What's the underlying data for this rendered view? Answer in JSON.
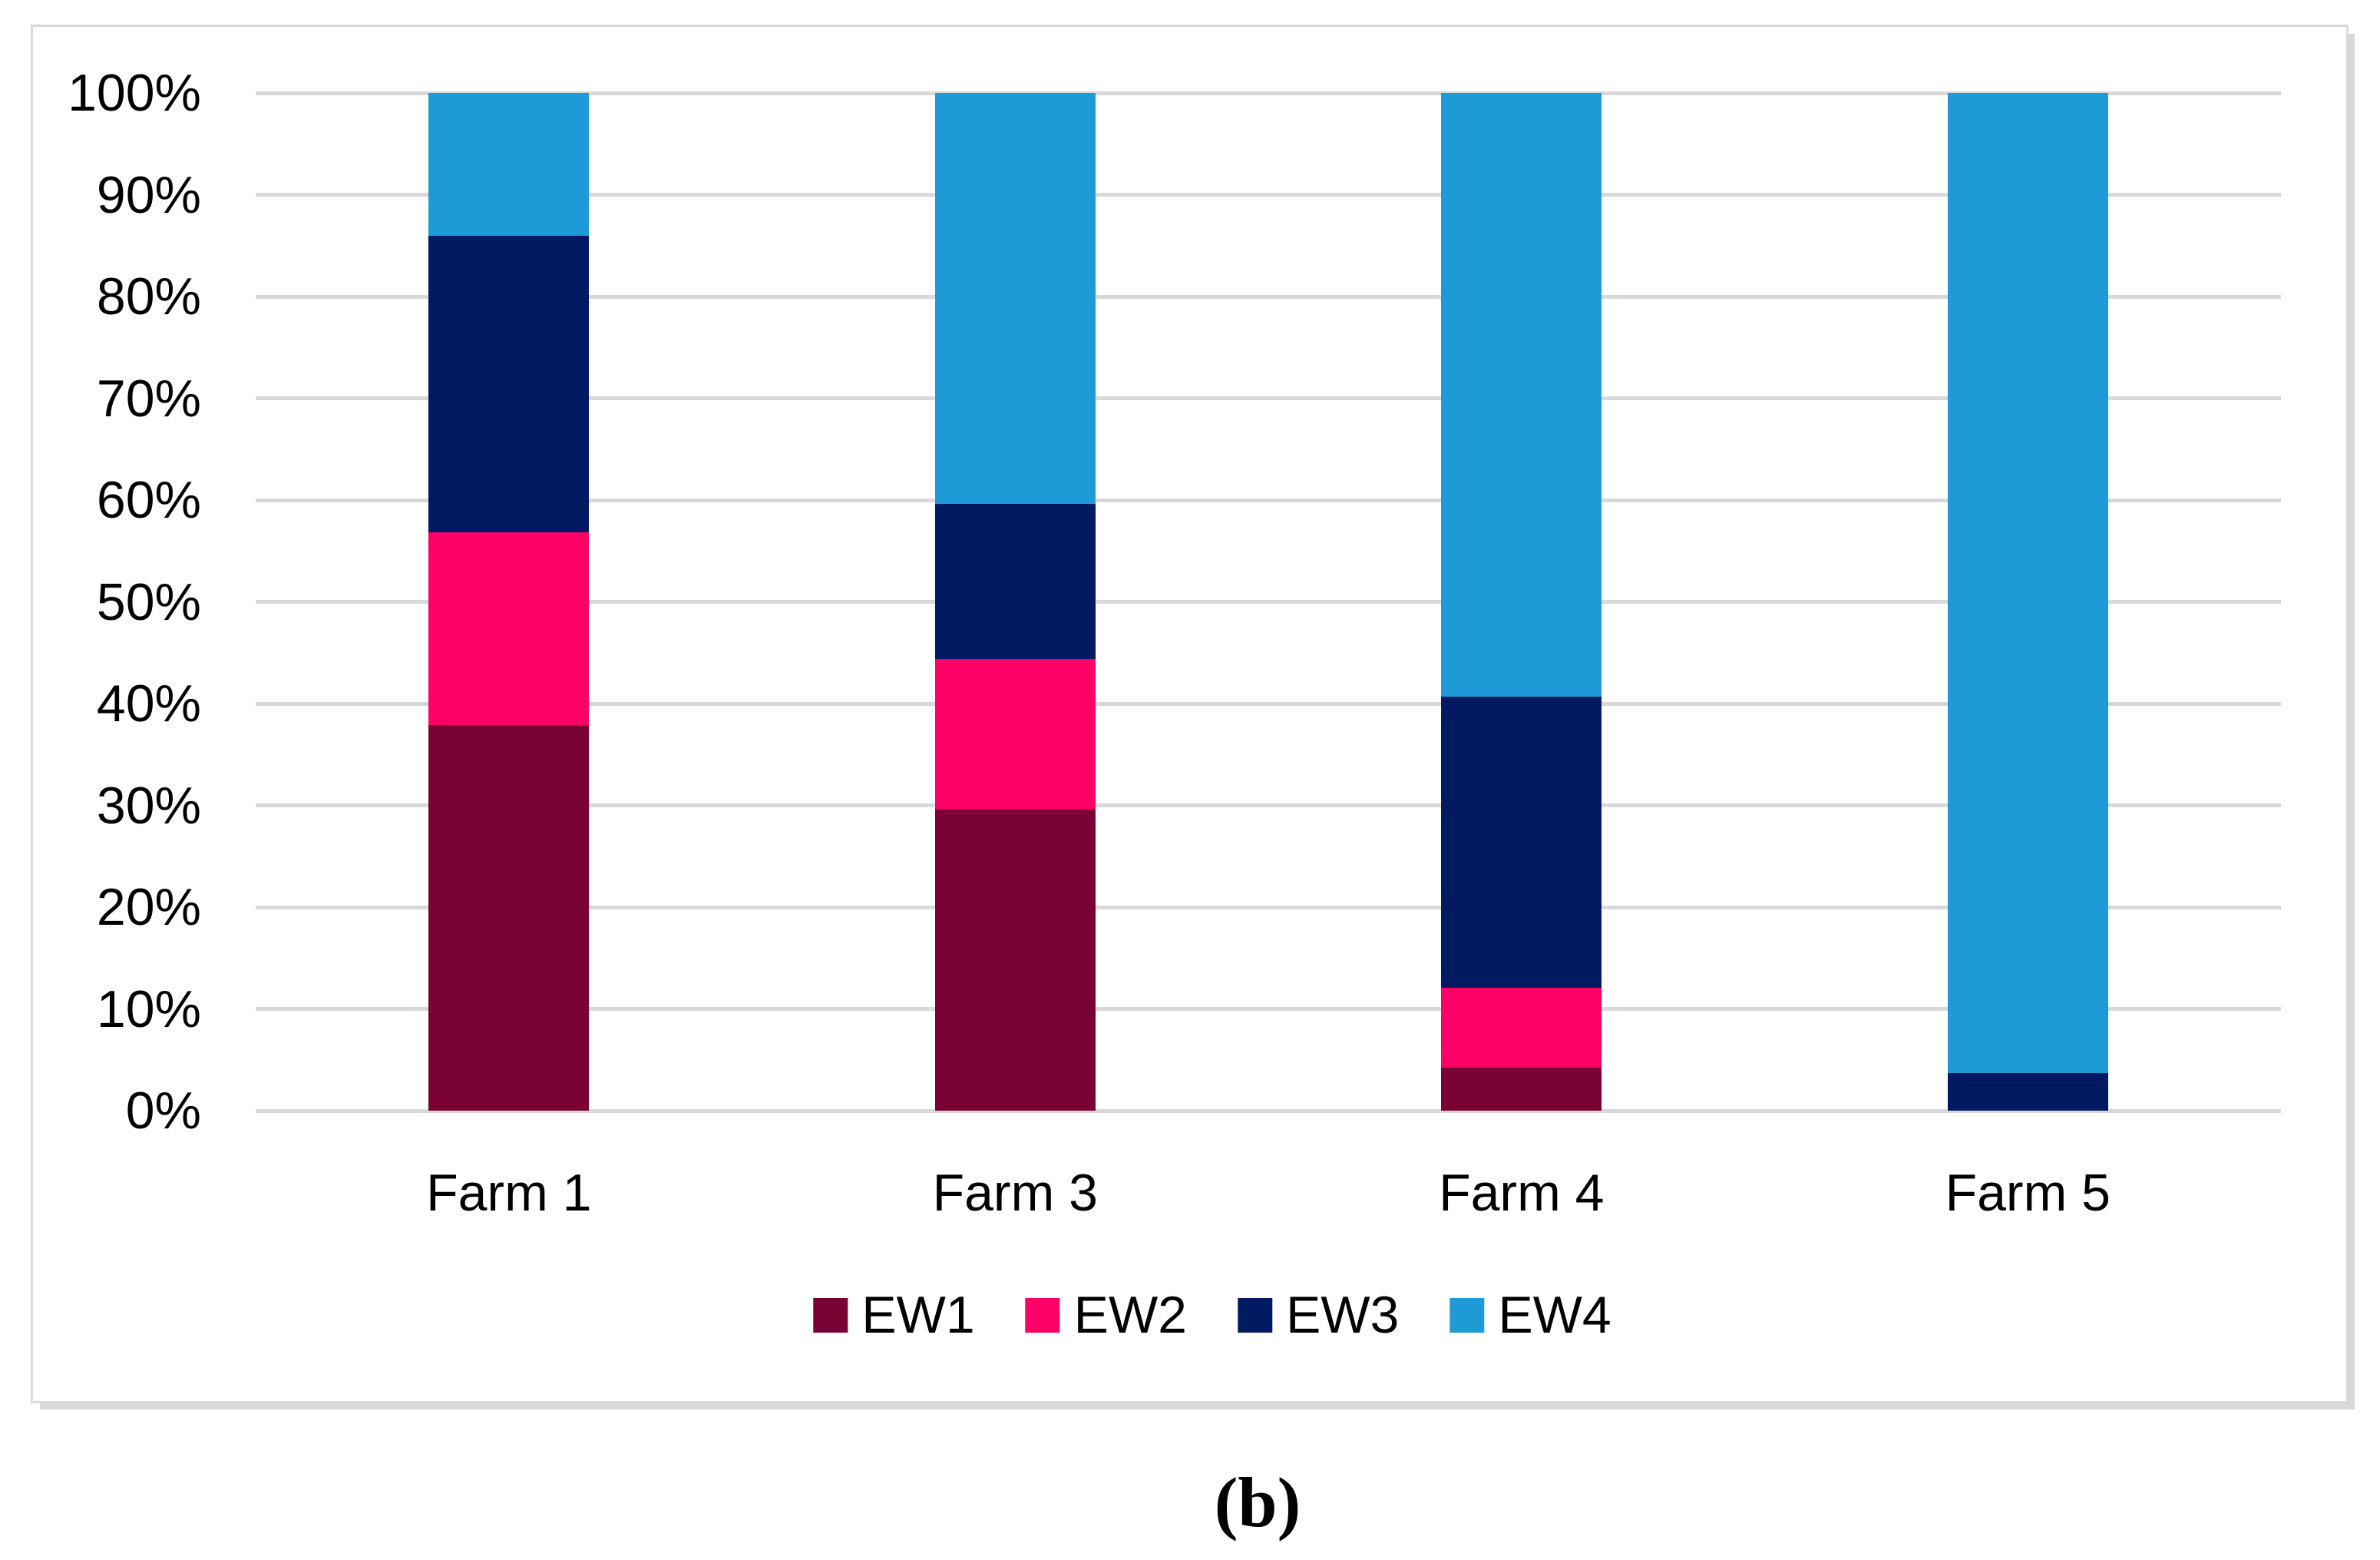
{
  "figure": {
    "caption": "(b)"
  },
  "chart_data": {
    "type": "bar",
    "subtype": "100%-stacked-column",
    "title": "",
    "xlabel": "",
    "ylabel": "",
    "categories": [
      "Farm 1",
      "Farm 3",
      "Farm 4",
      "Farm 5"
    ],
    "series": [
      {
        "name": "EW1",
        "color": "#7A0133",
        "values": [
          37.9,
          29.6,
          4.2,
          0
        ]
      },
      {
        "name": "EW2",
        "color": "#FF0066",
        "values": [
          18.9,
          14.8,
          7.9,
          0
        ]
      },
      {
        "name": "EW3",
        "color": "#001A61",
        "values": [
          29.2,
          15.2,
          28.6,
          3.7
        ]
      },
      {
        "name": "EW4",
        "color": "#1E9BD7",
        "values": [
          14.0,
          40.4,
          59.3,
          96.3
        ]
      }
    ],
    "y_axis": {
      "min": 0,
      "max": 100,
      "unit": "%",
      "tick_step": 10,
      "tick_labels_top_to_bottom": [
        "100%",
        "90%",
        "80%",
        "70%",
        "60%",
        "50%",
        "40%",
        "30%",
        "20%",
        "10%",
        "0%"
      ]
    },
    "legend": {
      "position": "bottom",
      "entries": [
        "EW1",
        "EW2",
        "EW3",
        "EW4"
      ]
    },
    "grid": true,
    "gridline_color": "#D9D9D9",
    "frame_border_color": "#D9D9D9",
    "plot_background": "#FFFFFF",
    "text_color": "#000000"
  }
}
